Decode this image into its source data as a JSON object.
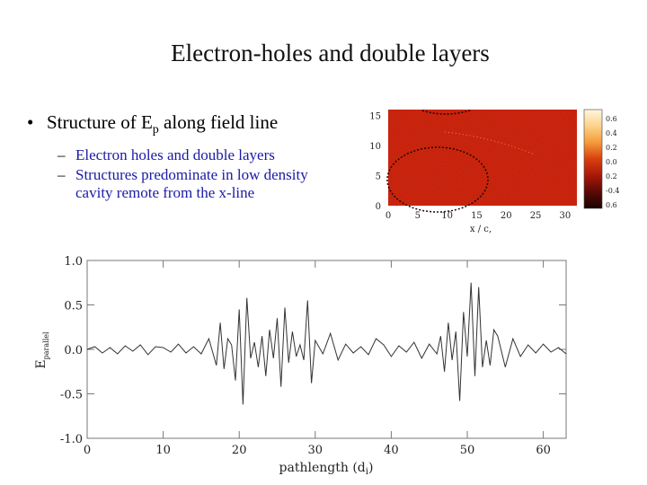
{
  "slide": {
    "title": "Electron-holes and double layers",
    "bullet_main": {
      "bullet": "•",
      "text": "Structure of E",
      "subscript": "p",
      "suffix": " along field line"
    },
    "sub_bullets": [
      {
        "dash": "–",
        "text": "Electron holes and double layers"
      },
      {
        "dash": "–",
        "text": "Structures predominate in low density cavity remote from the x-line"
      }
    ]
  },
  "colors": {
    "bullet_text": "#1a1aa6",
    "trace": "#333333",
    "map_base": "#c8200a"
  },
  "chart_data": [
    {
      "type": "heatmap",
      "xlabel": "x / c,",
      "xticks": [
        0,
        5,
        10,
        15,
        20,
        25,
        30
      ],
      "yticks": [
        0,
        5,
        10,
        15
      ],
      "xlim": [
        0,
        32
      ],
      "ylim": [
        0,
        16
      ],
      "colorbar_ticks": [
        "0.6",
        "0.4",
        "0.2",
        "0.0",
        "0.2",
        "-0.4",
        "0.6"
      ],
      "colorbar_colors": [
        "#fff6e0",
        "#fcd38a",
        "#f59a3a",
        "#d8400e",
        "#a8180a",
        "#5a0a05",
        "#1a0202"
      ]
    },
    {
      "type": "line",
      "xlabel": "pathlength (d",
      "xlabel_sub": "i",
      "xlabel_suffix": ")",
      "ylabel": "E",
      "ylabel_sub": "parallel",
      "xlim": [
        0,
        63
      ],
      "ylim": [
        -1.0,
        1.0
      ],
      "xticks": [
        0,
        10,
        20,
        30,
        40,
        50,
        60
      ],
      "yticks": [
        1.0,
        0.5,
        0.0,
        -0.5,
        -1.0
      ],
      "ytick_labels": [
        "1.0",
        "0.5",
        "0.0",
        "-0.5",
        "-1.0"
      ],
      "grid": false,
      "series": [
        {
          "x": [
            0,
            1,
            2,
            3,
            4,
            5,
            6,
            7,
            8,
            9,
            10,
            11,
            12,
            13,
            14,
            15,
            16,
            17,
            17.5,
            18,
            18.5,
            19,
            19.5,
            20,
            20.5,
            21,
            21.5,
            22,
            22.5,
            23,
            23.5,
            24,
            24.5,
            25,
            25.5,
            26,
            26.5,
            27,
            27.5,
            28,
            28.5,
            29,
            29.5,
            30,
            31,
            32,
            33,
            34,
            35,
            36,
            37,
            38,
            39,
            40,
            41,
            42,
            43,
            44,
            45,
            46,
            46.5,
            47,
            47.5,
            48,
            48.5,
            49,
            49.5,
            50,
            50.5,
            51,
            51.5,
            52,
            52.5,
            53,
            53.5,
            54,
            55,
            56,
            57,
            58,
            59,
            60,
            61,
            62,
            63
          ],
          "y": [
            0.0,
            0.03,
            -0.04,
            0.02,
            -0.05,
            0.04,
            -0.02,
            0.05,
            -0.06,
            0.03,
            0.02,
            -0.03,
            0.06,
            -0.04,
            0.03,
            -0.05,
            0.12,
            -0.18,
            0.3,
            -0.22,
            0.12,
            0.05,
            -0.35,
            0.45,
            -0.62,
            0.58,
            -0.1,
            0.08,
            -0.2,
            0.15,
            -0.3,
            0.22,
            -0.1,
            0.35,
            -0.42,
            0.47,
            -0.15,
            0.2,
            -0.08,
            0.05,
            -0.12,
            0.55,
            -0.38,
            0.1,
            -0.05,
            0.18,
            -0.12,
            0.06,
            -0.04,
            0.03,
            -0.06,
            0.12,
            0.05,
            -0.08,
            0.04,
            -0.03,
            0.08,
            -0.1,
            0.06,
            -0.05,
            0.15,
            -0.25,
            0.3,
            -0.12,
            0.2,
            -0.58,
            0.42,
            -0.08,
            0.75,
            -0.3,
            0.7,
            -0.2,
            0.1,
            -0.18,
            0.22,
            0.15,
            -0.2,
            0.12,
            -0.08,
            0.05,
            -0.04,
            0.06,
            -0.03,
            0.02,
            -0.05
          ]
        }
      ]
    }
  ]
}
